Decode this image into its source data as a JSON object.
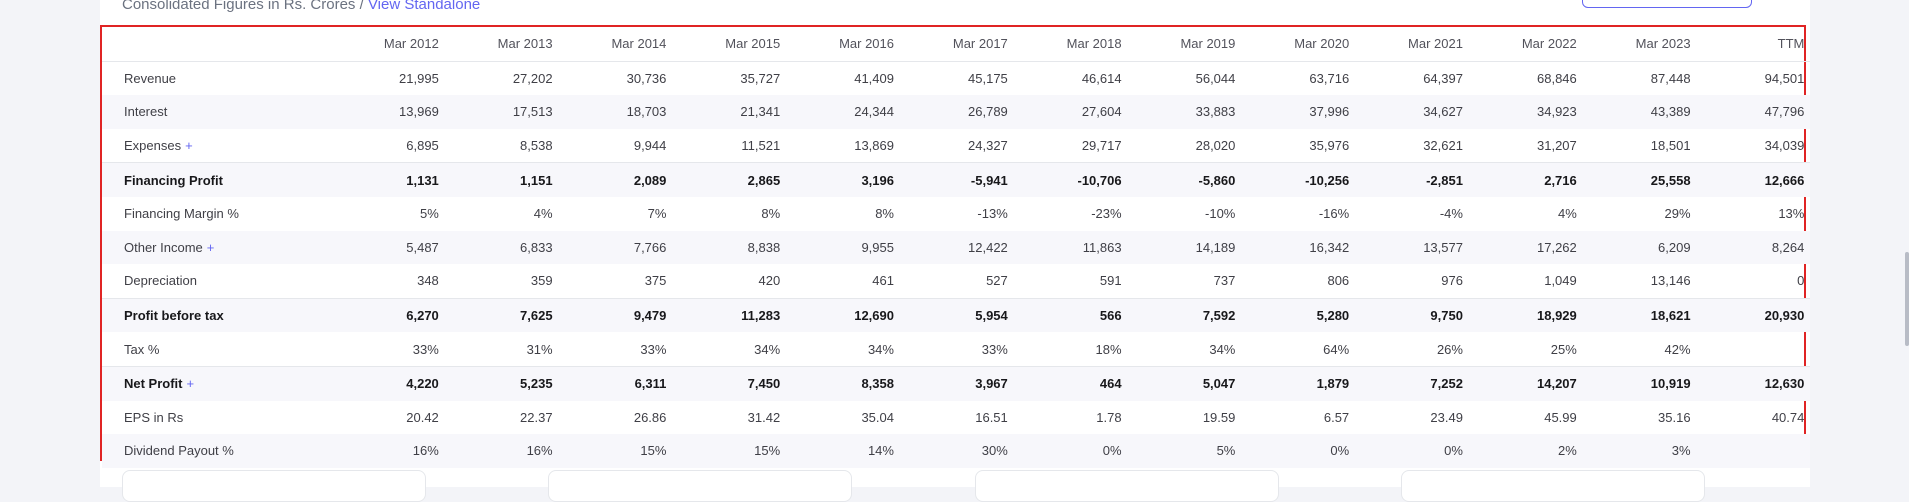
{
  "header": {
    "subtitle_text": "Consolidated Figures in Rs. Crores / ",
    "standalone_link": "View Standalone"
  },
  "table": {
    "columns": [
      "",
      "Mar 2012",
      "Mar 2013",
      "Mar 2014",
      "Mar 2015",
      "Mar 2016",
      "Mar 2017",
      "Mar 2018",
      "Mar 2019",
      "Mar 2020",
      "Mar 2021",
      "Mar 2022",
      "Mar 2023",
      "TTM"
    ],
    "rows": [
      {
        "label": "Revenue",
        "expand": false,
        "bold": false,
        "sep": false,
        "values": [
          "21,995",
          "27,202",
          "30,736",
          "35,727",
          "41,409",
          "45,175",
          "46,614",
          "56,044",
          "63,716",
          "64,397",
          "68,846",
          "87,448",
          "94,501"
        ]
      },
      {
        "label": "Interest",
        "expand": false,
        "bold": false,
        "sep": false,
        "values": [
          "13,969",
          "17,513",
          "18,703",
          "21,341",
          "24,344",
          "26,789",
          "27,604",
          "33,883",
          "37,996",
          "34,627",
          "34,923",
          "43,389",
          "47,796"
        ]
      },
      {
        "label": "Expenses",
        "expand": true,
        "bold": false,
        "sep": false,
        "values": [
          "6,895",
          "8,538",
          "9,944",
          "11,521",
          "13,869",
          "24,327",
          "29,717",
          "28,020",
          "35,976",
          "32,621",
          "31,207",
          "18,501",
          "34,039"
        ]
      },
      {
        "label": "Financing Profit",
        "expand": false,
        "bold": true,
        "sep": true,
        "values": [
          "1,131",
          "1,151",
          "2,089",
          "2,865",
          "3,196",
          "-5,941",
          "-10,706",
          "-5,860",
          "-10,256",
          "-2,851",
          "2,716",
          "25,558",
          "12,666"
        ]
      },
      {
        "label": "Financing Margin %",
        "expand": false,
        "bold": false,
        "sep": false,
        "values": [
          "5%",
          "4%",
          "7%",
          "8%",
          "8%",
          "-13%",
          "-23%",
          "-10%",
          "-16%",
          "-4%",
          "4%",
          "29%",
          "13%"
        ]
      },
      {
        "label": "Other Income",
        "expand": true,
        "bold": false,
        "sep": false,
        "values": [
          "5,487",
          "6,833",
          "7,766",
          "8,838",
          "9,955",
          "12,422",
          "11,863",
          "14,189",
          "16,342",
          "13,577",
          "17,262",
          "6,209",
          "8,264"
        ]
      },
      {
        "label": "Depreciation",
        "expand": false,
        "bold": false,
        "sep": false,
        "values": [
          "348",
          "359",
          "375",
          "420",
          "461",
          "527",
          "591",
          "737",
          "806",
          "976",
          "1,049",
          "13,146",
          "0"
        ]
      },
      {
        "label": "Profit before tax",
        "expand": false,
        "bold": true,
        "sep": true,
        "values": [
          "6,270",
          "7,625",
          "9,479",
          "11,283",
          "12,690",
          "5,954",
          "566",
          "7,592",
          "5,280",
          "9,750",
          "18,929",
          "18,621",
          "20,930"
        ]
      },
      {
        "label": "Tax %",
        "expand": false,
        "bold": false,
        "sep": false,
        "values": [
          "33%",
          "31%",
          "33%",
          "34%",
          "34%",
          "33%",
          "18%",
          "34%",
          "64%",
          "26%",
          "25%",
          "42%",
          ""
        ]
      },
      {
        "label": "Net Profit",
        "expand": true,
        "bold": true,
        "sep": true,
        "values": [
          "4,220",
          "5,235",
          "6,311",
          "7,450",
          "8,358",
          "3,967",
          "464",
          "5,047",
          "1,879",
          "7,252",
          "14,207",
          "10,919",
          "12,630"
        ]
      },
      {
        "label": "EPS in Rs",
        "expand": false,
        "bold": false,
        "sep": false,
        "values": [
          "20.42",
          "22.37",
          "26.86",
          "31.42",
          "35.04",
          "16.51",
          "1.78",
          "19.59",
          "6.57",
          "23.49",
          "45.99",
          "35.16",
          "40.74"
        ]
      },
      {
        "label": "Dividend Payout %",
        "expand": false,
        "bold": false,
        "sep": false,
        "values": [
          "16%",
          "16%",
          "15%",
          "15%",
          "14%",
          "30%",
          "0%",
          "5%",
          "0%",
          "0%",
          "2%",
          "3%",
          ""
        ]
      }
    ],
    "expand_symbol": "+"
  }
}
